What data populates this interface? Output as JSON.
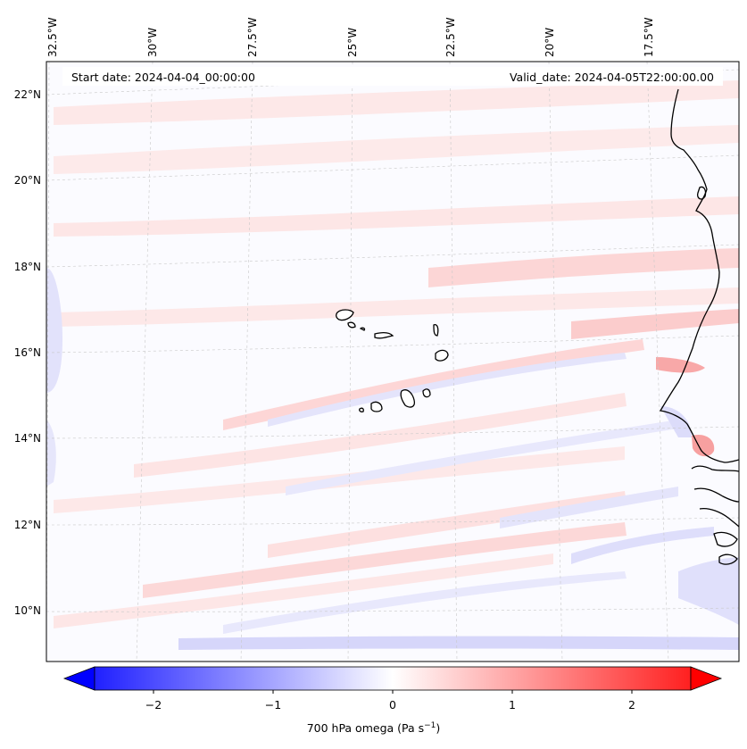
{
  "header": {
    "start_date": "Start date: 2024-04-04_00:00:00",
    "valid_date": "Valid_date: 2024-04-05T22:00:00.00"
  },
  "lon_labels": [
    "32.5°W",
    "30°W",
    "27.5°W",
    "25°W",
    "22.5°W",
    "20°W",
    "17.5°W"
  ],
  "lat_labels": [
    "22°N",
    "20°N",
    "18°N",
    "16°N",
    "14°N",
    "12°N",
    "10°N"
  ],
  "colorbar": {
    "ticks": [
      "−2",
      "−1",
      "0",
      "1",
      "2"
    ],
    "range": [
      -2.5,
      2.5
    ],
    "low_color": "#0000ff",
    "mid_color": "#ffffff",
    "high_color": "#ff0000",
    "label_prefix": "700 hPa omega (Pa s",
    "label_sup": "−1",
    "label_suffix": ")"
  },
  "field_colors": {
    "weak_ascent": "#fde4e4",
    "moderate_ascent": "#fbcaca",
    "weak_descent": "#e8e8fc",
    "moderate_descent": "#d4d4fa"
  }
}
